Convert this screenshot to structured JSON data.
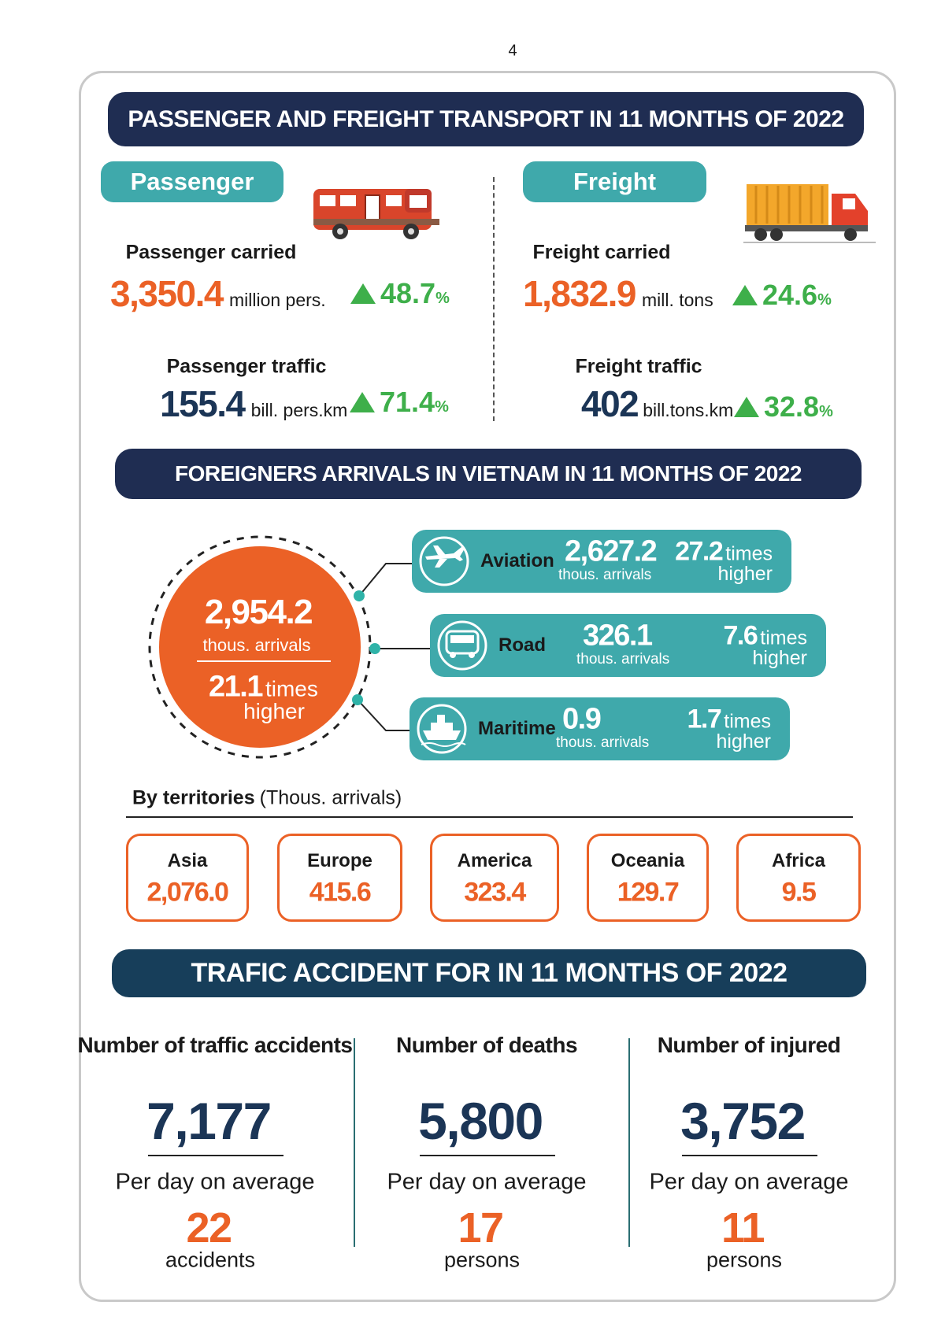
{
  "page_number": "4",
  "transport": {
    "title": "PASSENGER AND FREIGHT TRANSPORT IN 11 MONTHS OF 2022",
    "passenger": {
      "label": "Passenger",
      "carried": {
        "label": "Passenger carried",
        "value": "3,350.4",
        "unit": "million pers.",
        "growth": "48.7",
        "growth_unit": "%"
      },
      "traffic": {
        "label": "Passenger traffic",
        "value": "155.4",
        "unit": "bill. pers.km",
        "growth": "71.4",
        "growth_unit": "%"
      }
    },
    "freight": {
      "label": "Freight",
      "carried": {
        "label": "Freight carried",
        "value": "1,832.9",
        "unit": "mill. tons",
        "growth": "24.6",
        "growth_unit": "%"
      },
      "traffic": {
        "label": "Freight traffic",
        "value": "402",
        "unit": "bill.tons.km",
        "growth": "32.8",
        "growth_unit": "%"
      }
    }
  },
  "arrivals": {
    "title": "FOREIGNERS ARRIVALS IN VIETNAM IN 11 MONTHS OF 2022",
    "total": {
      "value": "2,954.2",
      "unit": "thous. arrivals",
      "multiplier": "21.1",
      "times": "times",
      "comparison": "higher"
    },
    "modes": [
      {
        "name": "Aviation",
        "value": "2,627.2",
        "unit": "thous. arrivals",
        "multiplier": "27.2",
        "times": "times",
        "comparison": "higher"
      },
      {
        "name": "Road",
        "value": "326.1",
        "unit": "thous. arrivals",
        "multiplier": "7.6",
        "times": "times",
        "comparison": "higher"
      },
      {
        "name": "Maritime",
        "value": "0.9",
        "unit": "thous. arrivals",
        "multiplier": "1.7",
        "times": "times",
        "comparison": "higher"
      }
    ],
    "territories": {
      "title": "By territories",
      "unit": "(Thous. arrivals)",
      "items": [
        {
          "name": "Asia",
          "value": "2,076.0"
        },
        {
          "name": "Europe",
          "value": "415.6"
        },
        {
          "name": "America",
          "value": "323.4"
        },
        {
          "name": "Oceania",
          "value": "129.7"
        },
        {
          "name": "Africa",
          "value": "9.5"
        }
      ]
    }
  },
  "accidents": {
    "title": "TRAFIC ACCIDENT FOR IN 11 MONTHS OF 2022",
    "items": [
      {
        "label": "Number of traffic accidents",
        "value": "7,177",
        "per_day_label": "Per day on average",
        "per_day_value": "22",
        "per_day_unit": "accidents"
      },
      {
        "label": "Number of deaths",
        "value": "5,800",
        "per_day_label": "Per day on average",
        "per_day_value": "17",
        "per_day_unit": "persons"
      },
      {
        "label": "Number of injured",
        "value": "3,752",
        "per_day_label": "Per day on average",
        "per_day_value": "11",
        "per_day_unit": "persons"
      }
    ]
  }
}
